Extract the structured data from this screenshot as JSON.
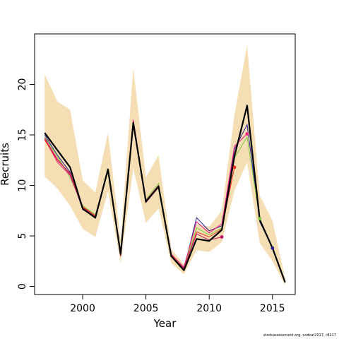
{
  "footer_note": "stockassessment.org, codcat2017, r8217",
  "chart_data": {
    "type": "line",
    "title": "",
    "xlabel": "Year",
    "ylabel": "Recruits",
    "xlim": [
      1996.2,
      2016.8
    ],
    "ylim": [
      -0.8,
      25.0
    ],
    "grid": false,
    "x_ticks": [
      2000,
      2005,
      2010,
      2015
    ],
    "y_ticks": [
      0,
      5,
      10,
      15,
      20
    ],
    "band": {
      "color": "#f5deb3",
      "x": [
        1997,
        1998,
        1999,
        2000,
        2001,
        2002,
        2003,
        2004,
        2005,
        2006,
        2007,
        2008,
        2009,
        2010,
        2011,
        2012,
        2013,
        2014,
        2015,
        2016
      ],
      "upper": [
        21.0,
        18.3,
        17.5,
        10.5,
        9.3,
        15.2,
        4.5,
        21.6,
        10.8,
        13.0,
        3.7,
        2.2,
        6.2,
        5.9,
        7.5,
        17.0,
        23.9,
        9.0,
        6.5,
        0.8
      ],
      "lower": [
        10.9,
        9.7,
        8.0,
        5.7,
        4.9,
        9.4,
        2.3,
        11.7,
        6.3,
        7.7,
        2.3,
        1.2,
        3.6,
        3.4,
        4.4,
        9.5,
        12.3,
        4.3,
        2.5,
        0.1
      ]
    },
    "main_series": {
      "color": "#000000",
      "x": [
        1997,
        1998,
        1999,
        2000,
        2001,
        2002,
        2003,
        2004,
        2005,
        2006,
        2007,
        2008,
        2009,
        2010,
        2011,
        2012,
        2013,
        2014,
        2015,
        2016
      ],
      "values": [
        15.2,
        13.5,
        11.8,
        7.7,
        6.8,
        11.6,
        3.2,
        16.2,
        8.4,
        9.9,
        3.0,
        1.6,
        4.7,
        4.5,
        5.6,
        12.9,
        17.9,
        6.6,
        3.8,
        0.4
      ]
    },
    "retro_series": [
      {
        "color": "#2c1f8f",
        "x": [
          1997,
          1998,
          1999,
          2000,
          2001,
          2002,
          2003,
          2004,
          2005,
          2006,
          2007,
          2008,
          2009,
          2010,
          2011,
          2012,
          2013,
          2014,
          2015
        ],
        "values": [
          15.0,
          13.0,
          11.3,
          7.6,
          6.9,
          11.5,
          3.1,
          16.1,
          8.5,
          9.9,
          3.1,
          1.7,
          6.8,
          5.5,
          6.0,
          13.6,
          16.0,
          6.4,
          3.8
        ]
      },
      {
        "color": "#7cc93b",
        "x": [
          1997,
          1998,
          1999,
          2000,
          2001,
          2002,
          2003,
          2004,
          2005,
          2006,
          2007,
          2008,
          2009,
          2010,
          2011,
          2012,
          2013,
          2014
        ],
        "values": [
          14.8,
          12.9,
          10.8,
          8.0,
          7.1,
          11.3,
          3.1,
          16.4,
          8.6,
          10.2,
          3.2,
          1.8,
          5.8,
          5.1,
          5.8,
          12.7,
          14.8,
          6.7
        ]
      },
      {
        "color": "#f0197d",
        "x": [
          1997,
          1998,
          1999,
          2000,
          2001,
          2002,
          2003,
          2004,
          2005,
          2006,
          2007,
          2008,
          2009,
          2010,
          2011,
          2012,
          2013
        ],
        "values": [
          14.6,
          12.3,
          11.0,
          7.8,
          7.0,
          11.5,
          3.0,
          16.5,
          8.5,
          10.0,
          3.2,
          1.9,
          6.4,
          5.3,
          6.2,
          13.9,
          15.1
        ]
      },
      {
        "color": "#e8301c",
        "x": [
          1997,
          1998,
          1999,
          2000,
          2001,
          2002,
          2003,
          2004,
          2005,
          2006,
          2007,
          2008,
          2009,
          2010,
          2011,
          2012
        ],
        "values": [
          14.5,
          12.5,
          11.2,
          7.9,
          7.0,
          11.4,
          3.1,
          16.3,
          8.4,
          9.9,
          3.1,
          1.7,
          5.4,
          4.9,
          5.7,
          11.8
        ]
      },
      {
        "color": "#c2126b",
        "x": [
          1997,
          1998,
          1999,
          2000,
          2001,
          2002,
          2003,
          2004,
          2005,
          2006,
          2007,
          2008,
          2009,
          2010,
          2011
        ],
        "values": [
          14.7,
          12.6,
          11.1,
          7.7,
          6.9,
          11.6,
          3.0,
          16.0,
          8.3,
          9.8,
          3.0,
          1.8,
          5.2,
          4.6,
          4.9
        ]
      }
    ],
    "terminal_points": [
      {
        "x": 2011,
        "y": 4.9,
        "color": "#c2126b"
      },
      {
        "x": 2012,
        "y": 11.8,
        "color": "#e8301c"
      },
      {
        "x": 2013,
        "y": 15.1,
        "color": "#f0197d"
      },
      {
        "x": 2014,
        "y": 6.7,
        "color": "#7cc93b"
      },
      {
        "x": 2015,
        "y": 3.8,
        "color": "#2c1f8f"
      }
    ]
  }
}
